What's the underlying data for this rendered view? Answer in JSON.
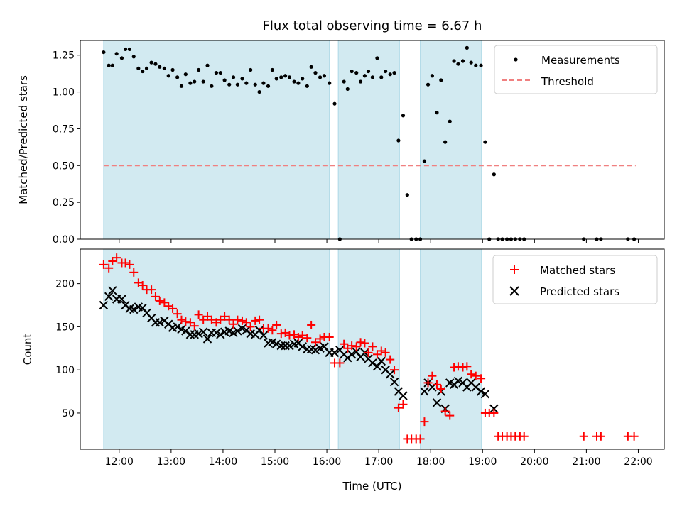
{
  "title": "Flux total observing time = 6.67 h",
  "colors": {
    "shade": "#add8e6",
    "measurement": "#000000",
    "threshold": "#f08080",
    "matched": "#ff0000",
    "predicted": "#000000"
  },
  "chart_data": [
    {
      "type": "scatter",
      "ylabel": "Matched/Predicted stars",
      "xlabel": "",
      "xlim": [
        11.25,
        22.5
      ],
      "ylim": [
        0,
        1.35
      ],
      "yticks": [
        "0.00",
        "0.25",
        "0.50",
        "0.75",
        "1.00",
        "1.25"
      ],
      "legend": {
        "position": "top-right",
        "entries": [
          "Measurements",
          "Threshold"
        ]
      },
      "shaded_intervals": [
        [
          11.7,
          16.05
        ],
        [
          16.22,
          17.4
        ],
        [
          17.8,
          18.98
        ]
      ],
      "threshold": {
        "name": "Threshold",
        "value": 0.5,
        "x": [
          11.7,
          21.95
        ]
      },
      "series": [
        {
          "name": "Measurements",
          "marker": "dot",
          "x": [
            11.7,
            11.8,
            11.87,
            11.95,
            12.05,
            12.12,
            12.2,
            12.28,
            12.37,
            12.45,
            12.53,
            12.62,
            12.7,
            12.78,
            12.87,
            12.95,
            13.03,
            13.12,
            13.2,
            13.28,
            13.37,
            13.45,
            13.53,
            13.62,
            13.7,
            13.78,
            13.87,
            13.95,
            14.03,
            14.12,
            14.2,
            14.28,
            14.37,
            14.45,
            14.53,
            14.62,
            14.7,
            14.78,
            14.87,
            14.95,
            15.03,
            15.12,
            15.2,
            15.28,
            15.37,
            15.45,
            15.53,
            15.62,
            15.7,
            15.78,
            15.87,
            15.95,
            16.05,
            16.15,
            16.25,
            16.33,
            16.4,
            16.48,
            16.57,
            16.65,
            16.73,
            16.8,
            16.88,
            16.97,
            17.05,
            17.13,
            17.22,
            17.3,
            17.38,
            17.47,
            17.55,
            17.63,
            17.72,
            17.8,
            17.88,
            17.95,
            18.03,
            18.12,
            18.2,
            18.28,
            18.37,
            18.45,
            18.53,
            18.62,
            18.7,
            18.78,
            18.87,
            18.97,
            19.05,
            19.13,
            19.22,
            19.3,
            19.38,
            19.47,
            19.55,
            19.63,
            19.72,
            19.8,
            20.95,
            21.2,
            21.28,
            21.8,
            21.92
          ],
          "y": [
            1.27,
            1.18,
            1.18,
            1.26,
            1.23,
            1.29,
            1.29,
            1.24,
            1.16,
            1.14,
            1.16,
            1.2,
            1.19,
            1.17,
            1.16,
            1.11,
            1.15,
            1.1,
            1.04,
            1.12,
            1.06,
            1.07,
            1.15,
            1.07,
            1.18,
            1.04,
            1.13,
            1.13,
            1.08,
            1.05,
            1.1,
            1.05,
            1.09,
            1.06,
            1.15,
            1.05,
            1.0,
            1.06,
            1.04,
            1.15,
            1.09,
            1.1,
            1.11,
            1.1,
            1.07,
            1.06,
            1.09,
            1.04,
            1.17,
            1.13,
            1.1,
            1.11,
            1.06,
            0.92,
            0.0,
            1.07,
            1.02,
            1.14,
            1.13,
            1.07,
            1.11,
            1.14,
            1.1,
            1.23,
            1.1,
            1.14,
            1.12,
            1.13,
            0.67,
            0.84,
            0.3,
            0.0,
            0.0,
            0.0,
            0.53,
            1.05,
            1.11,
            0.86,
            1.08,
            0.66,
            0.8,
            1.21,
            1.19,
            1.21,
            1.3,
            1.2,
            1.18,
            1.18,
            0.66,
            0.0,
            0.44,
            0.0,
            0.0,
            0.0,
            0.0,
            0.0,
            0.0,
            0.0,
            0.0,
            0.0,
            0.0,
            0.0,
            0.0
          ]
        }
      ]
    },
    {
      "type": "scatter",
      "ylabel": "Count",
      "xlabel": "Time (UTC)",
      "xlim": [
        11.25,
        22.5
      ],
      "ylim": [
        8,
        240
      ],
      "yticks": [
        "50",
        "100",
        "150",
        "200"
      ],
      "xticks": [
        "12:00",
        "13:00",
        "14:00",
        "15:00",
        "16:00",
        "17:00",
        "18:00",
        "19:00",
        "20:00",
        "21:00",
        "22:00"
      ],
      "legend": {
        "position": "top-right",
        "entries": [
          "Matched stars",
          "Predicted stars"
        ]
      },
      "shaded_intervals": [
        [
          11.7,
          16.05
        ],
        [
          16.22,
          17.4
        ],
        [
          17.8,
          18.98
        ]
      ],
      "series": [
        {
          "name": "Matched stars",
          "marker": "plus",
          "x": [
            11.7,
            11.8,
            11.87,
            11.95,
            12.05,
            12.12,
            12.2,
            12.28,
            12.37,
            12.45,
            12.53,
            12.62,
            12.7,
            12.78,
            12.87,
            12.95,
            13.03,
            13.12,
            13.2,
            13.28,
            13.37,
            13.45,
            13.53,
            13.62,
            13.7,
            13.78,
            13.87,
            13.95,
            14.03,
            14.12,
            14.2,
            14.28,
            14.37,
            14.45,
            14.53,
            14.62,
            14.7,
            14.78,
            14.87,
            14.95,
            15.03,
            15.12,
            15.2,
            15.28,
            15.37,
            15.45,
            15.53,
            15.62,
            15.7,
            15.78,
            15.87,
            15.95,
            16.05,
            16.15,
            16.25,
            16.33,
            16.4,
            16.48,
            16.57,
            16.65,
            16.73,
            16.8,
            16.88,
            16.97,
            17.05,
            17.13,
            17.22,
            17.3,
            17.38,
            17.47,
            17.55,
            17.63,
            17.72,
            17.8,
            17.88,
            17.95,
            18.03,
            18.12,
            18.2,
            18.28,
            18.37,
            18.45,
            18.53,
            18.62,
            18.7,
            18.78,
            18.87,
            18.97,
            19.05,
            19.13,
            19.22,
            19.3,
            19.38,
            19.47,
            19.55,
            19.63,
            19.72,
            19.8,
            20.95,
            21.2,
            21.28,
            21.8,
            21.92
          ],
          "y": [
            222,
            218,
            226,
            230,
            224,
            224,
            222,
            213,
            201,
            198,
            193,
            193,
            185,
            180,
            178,
            174,
            171,
            165,
            158,
            156,
            155,
            151,
            164,
            158,
            162,
            158,
            155,
            158,
            162,
            158,
            153,
            158,
            157,
            155,
            150,
            157,
            158,
            148,
            148,
            146,
            152,
            142,
            143,
            140,
            141,
            138,
            140,
            137,
            152,
            132,
            136,
            138,
            138,
            108,
            108,
            130,
            125,
            128,
            127,
            132,
            131,
            120,
            127,
            118,
            122,
            120,
            112,
            100,
            56,
            60,
            20,
            20,
            20,
            20,
            40,
            85,
            93,
            83,
            78,
            52,
            47,
            103,
            104,
            103,
            104,
            95,
            93,
            90,
            50,
            50,
            50,
            23,
            23,
            23,
            23,
            23,
            23,
            23,
            23,
            23,
            23,
            23,
            23
          ]
        },
        {
          "name": "Predicted stars",
          "marker": "cross",
          "x": [
            11.7,
            11.8,
            11.87,
            11.95,
            12.05,
            12.12,
            12.2,
            12.28,
            12.37,
            12.45,
            12.53,
            12.62,
            12.7,
            12.78,
            12.87,
            12.95,
            13.03,
            13.12,
            13.2,
            13.28,
            13.37,
            13.45,
            13.53,
            13.62,
            13.7,
            13.78,
            13.87,
            13.95,
            14.03,
            14.12,
            14.2,
            14.28,
            14.37,
            14.45,
            14.53,
            14.62,
            14.7,
            14.78,
            14.87,
            14.95,
            15.03,
            15.12,
            15.2,
            15.28,
            15.37,
            15.45,
            15.53,
            15.62,
            15.7,
            15.78,
            15.87,
            15.95,
            16.05,
            16.15,
            16.25,
            16.33,
            16.4,
            16.48,
            16.57,
            16.65,
            16.73,
            16.8,
            16.88,
            16.97,
            17.05,
            17.13,
            17.22,
            17.3,
            17.38,
            17.47,
            17.88,
            17.95,
            18.03,
            18.12,
            18.2,
            18.28,
            18.37,
            18.45,
            18.53,
            18.62,
            18.7,
            18.78,
            18.87,
            18.97,
            19.05,
            19.22
          ],
          "y": [
            175,
            185,
            192,
            182,
            182,
            175,
            171,
            170,
            173,
            172,
            166,
            160,
            155,
            155,
            157,
            153,
            149,
            150,
            147,
            145,
            141,
            141,
            142,
            144,
            136,
            143,
            143,
            141,
            144,
            145,
            143,
            145,
            148,
            146,
            142,
            141,
            146,
            140,
            131,
            132,
            130,
            128,
            128,
            128,
            130,
            131,
            127,
            124,
            124,
            123,
            125,
            127,
            120,
            120,
            123,
            118,
            114,
            118,
            121,
            115,
            120,
            113,
            108,
            104,
            110,
            100,
            95,
            86,
            75,
            70,
            75,
            85,
            80,
            62,
            75,
            55,
            85,
            83,
            87,
            85,
            80,
            85,
            80,
            75,
            72,
            55
          ]
        }
      ]
    }
  ]
}
